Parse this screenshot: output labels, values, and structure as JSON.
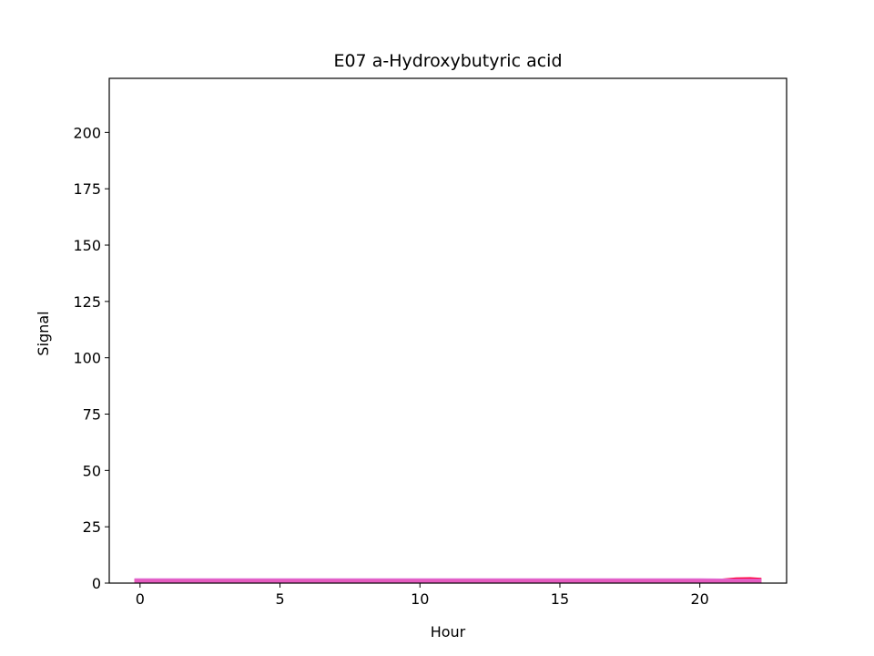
{
  "chart_data": {
    "type": "area",
    "title": "E07 a-Hydroxybutyric acid",
    "xlabel": "Hour",
    "ylabel": "Signal",
    "xlim": [
      -1.1,
      23.1
    ],
    "ylim": [
      0,
      224
    ],
    "xticks": [
      0,
      5,
      10,
      15,
      20
    ],
    "yticks": [
      0,
      25,
      50,
      75,
      100,
      125,
      150,
      175,
      200
    ],
    "grid": false,
    "legend": "none",
    "series": [
      {
        "color": "#ff0040",
        "x": [
          -0.2,
          2,
          4,
          6,
          8,
          10,
          12,
          14,
          16,
          18,
          20,
          20.8,
          21.3,
          21.8,
          22.2
        ],
        "y": [
          1.6,
          1.6,
          1.6,
          1.6,
          1.6,
          1.6,
          1.6,
          1.6,
          1.6,
          1.6,
          1.6,
          1.7,
          2.2,
          2.3,
          2.0
        ]
      },
      {
        "color": "#e066d0",
        "x": [
          -0.2,
          2,
          4,
          6,
          8,
          10,
          12,
          14,
          16,
          18,
          20,
          20.8,
          21.3,
          21.8,
          22.2
        ],
        "y": [
          1.8,
          1.8,
          1.8,
          1.8,
          1.8,
          1.8,
          1.8,
          1.8,
          1.8,
          1.8,
          1.8,
          1.7,
          1.6,
          1.6,
          1.6
        ]
      }
    ]
  }
}
